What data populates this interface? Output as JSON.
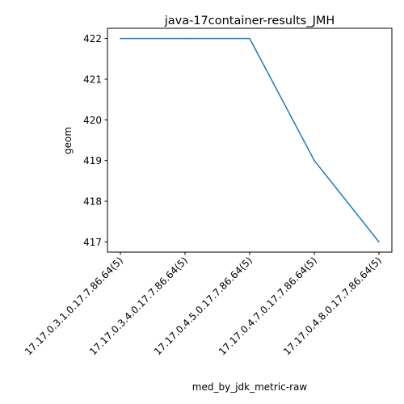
{
  "chart_data": {
    "type": "line",
    "title": "java-17container-results_JMH",
    "xlabel": "med_by_jdk_metric-raw",
    "ylabel": "geom",
    "categories": [
      "17.17.0.3.1.0.17.7.86.64(5)",
      "17.17.0.3.4.0.17.7.86.64(5)",
      "17.17.0.4.5.0.17.7.86.64(5)",
      "17.17.0.4.7.0.17.7.86.64(5)",
      "17.17.0.4.8.0.17.7.86.64(5)"
    ],
    "series": [
      {
        "values": [
          422,
          422,
          422,
          419,
          417
        ],
        "color": "#1f77b4"
      }
    ],
    "yticks": [
      "417",
      "418",
      "419",
      "420",
      "421",
      "422"
    ],
    "ylim": [
      416.75,
      422.25
    ],
    "grid": false,
    "legend": false
  }
}
